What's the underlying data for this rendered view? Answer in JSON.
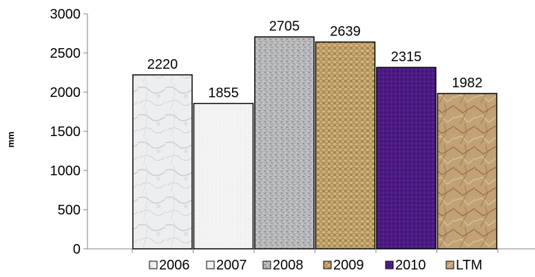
{
  "chart_data": {
    "type": "bar",
    "title": "",
    "xlabel": "",
    "ylabel": "mm",
    "ylim": [
      0,
      3000
    ],
    "yticks": [
      0,
      500,
      1000,
      1500,
      2000,
      2500,
      3000
    ],
    "grid": false,
    "legend_placement": "bottom",
    "categories": [
      "2006",
      "2007",
      "2008",
      "2009",
      "2010",
      "LTM"
    ],
    "values": [
      2220,
      1855,
      2705,
      2639,
      2315,
      1982
    ],
    "data_labels": [
      "2220",
      "1855",
      "2705",
      "2639",
      "2315",
      "1982"
    ],
    "legend": [
      "2006",
      "2007",
      "2008",
      "2009",
      "2010",
      "LTM"
    ],
    "colors": [
      "#e6e7e9",
      "#f3f3f3",
      "#b7b8bb",
      "#b89a63",
      "#4a1880",
      "#bf9e73"
    ],
    "fills": [
      "marble",
      "sand",
      "granite",
      "woven-canvas",
      "purple-mesh",
      "crumpled-paper"
    ]
  }
}
